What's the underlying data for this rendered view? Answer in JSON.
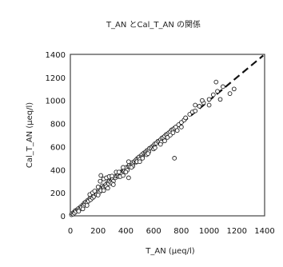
{
  "chart_data": {
    "type": "scatter",
    "title": "T_AN とCal_T_AN の関係",
    "xlabel": "T_AN (μeq/l)",
    "ylabel": "Cal_T_AN (μeq/l)",
    "xlim": [
      0,
      1400
    ],
    "ylim": [
      0,
      1400
    ],
    "xticks": [
      "0",
      "200",
      "400",
      "600",
      "800",
      "1000",
      "1200",
      "1400"
    ],
    "yticks": [
      "0",
      "200",
      "400",
      "600",
      "800",
      "1000",
      "1200",
      "1400"
    ],
    "grid": false,
    "legend": "none",
    "reference_line": {
      "style": "dashed",
      "x": [
        0,
        1390
      ],
      "y": [
        0,
        1390
      ]
    },
    "points": [
      [
        8,
        10
      ],
      [
        12,
        20
      ],
      [
        20,
        15
      ],
      [
        25,
        30
      ],
      [
        30,
        25
      ],
      [
        35,
        45
      ],
      [
        40,
        38
      ],
      [
        50,
        55
      ],
      [
        55,
        48
      ],
      [
        60,
        65
      ],
      [
        70,
        60
      ],
      [
        75,
        80
      ],
      [
        80,
        72
      ],
      [
        90,
        95
      ],
      [
        95,
        85
      ],
      [
        100,
        110
      ],
      [
        105,
        100
      ],
      [
        110,
        120
      ],
      [
        120,
        115
      ],
      [
        125,
        135
      ],
      [
        130,
        128
      ],
      [
        140,
        150
      ],
      [
        145,
        140
      ],
      [
        150,
        165
      ],
      [
        160,
        155
      ],
      [
        165,
        175
      ],
      [
        170,
        168
      ],
      [
        180,
        190
      ],
      [
        185,
        200
      ],
      [
        190,
        185
      ],
      [
        200,
        210
      ],
      [
        205,
        225
      ],
      [
        210,
        205
      ],
      [
        215,
        235
      ],
      [
        220,
        220
      ],
      [
        230,
        260
      ],
      [
        235,
        245
      ],
      [
        240,
        250
      ],
      [
        250,
        260
      ],
      [
        255,
        270
      ],
      [
        260,
        255
      ],
      [
        270,
        290
      ],
      [
        275,
        280
      ],
      [
        280,
        300
      ],
      [
        290,
        295
      ],
      [
        300,
        310
      ],
      [
        305,
        320
      ],
      [
        310,
        300
      ],
      [
        320,
        335
      ],
      [
        325,
        330
      ],
      [
        330,
        345
      ],
      [
        340,
        350
      ],
      [
        345,
        360
      ],
      [
        350,
        340
      ],
      [
        360,
        370
      ],
      [
        365,
        380
      ],
      [
        370,
        360
      ],
      [
        380,
        395
      ],
      [
        385,
        390
      ],
      [
        390,
        400
      ],
      [
        400,
        410
      ],
      [
        405,
        420
      ],
      [
        410,
        395
      ],
      [
        420,
        430
      ],
      [
        425,
        440
      ],
      [
        430,
        425
      ],
      [
        440,
        450
      ],
      [
        445,
        460
      ],
      [
        450,
        445
      ],
      [
        460,
        470
      ],
      [
        470,
        480
      ],
      [
        475,
        465
      ],
      [
        480,
        495
      ],
      [
        490,
        500
      ],
      [
        495,
        510
      ],
      [
        500,
        490
      ],
      [
        510,
        520
      ],
      [
        515,
        530
      ],
      [
        520,
        510
      ],
      [
        530,
        545
      ],
      [
        540,
        550
      ],
      [
        545,
        540
      ],
      [
        550,
        565
      ],
      [
        560,
        570
      ],
      [
        565,
        555
      ],
      [
        570,
        585
      ],
      [
        580,
        590
      ],
      [
        590,
        600
      ],
      [
        600,
        610
      ],
      [
        605,
        595
      ],
      [
        610,
        625
      ],
      [
        620,
        630
      ],
      [
        630,
        645
      ],
      [
        640,
        650
      ],
      [
        650,
        660
      ],
      [
        655,
        640
      ],
      [
        660,
        675
      ],
      [
        670,
        680
      ],
      [
        680,
        690
      ],
      [
        690,
        705
      ],
      [
        700,
        710
      ],
      [
        710,
        720
      ],
      [
        720,
        730
      ],
      [
        730,
        745
      ],
      [
        740,
        750
      ],
      [
        750,
        760
      ],
      [
        760,
        770
      ],
      [
        780,
        790
      ],
      [
        800,
        810
      ],
      [
        820,
        830
      ],
      [
        830,
        850
      ],
      [
        860,
        880
      ],
      [
        880,
        900
      ],
      [
        900,
        910
      ],
      [
        930,
        950
      ],
      [
        960,
        980
      ],
      [
        1000,
        1010
      ],
      [
        1030,
        1050
      ],
      [
        1060,
        1080
      ],
      [
        1100,
        1120
      ],
      [
        140,
        185
      ],
      [
        160,
        200
      ],
      [
        175,
        215
      ],
      [
        200,
        250
      ],
      [
        215,
        300
      ],
      [
        220,
        350
      ],
      [
        240,
        320
      ],
      [
        260,
        330
      ],
      [
        280,
        340
      ],
      [
        300,
        345
      ],
      [
        330,
        380
      ],
      [
        350,
        380
      ],
      [
        380,
        420
      ],
      [
        420,
        470
      ],
      [
        450,
        430
      ],
      [
        480,
        470
      ],
      [
        520,
        500
      ],
      [
        550,
        530
      ],
      [
        600,
        580
      ],
      [
        650,
        620
      ],
      [
        700,
        680
      ],
      [
        720,
        700
      ],
      [
        770,
        740
      ],
      [
        800,
        770
      ],
      [
        750,
        500
      ],
      [
        900,
        960
      ],
      [
        950,
        1000
      ],
      [
        1000,
        960
      ],
      [
        1050,
        1160
      ],
      [
        1080,
        1010
      ],
      [
        1150,
        1060
      ],
      [
        1180,
        1100
      ],
      [
        120,
        90
      ],
      [
        90,
        60
      ],
      [
        60,
        40
      ],
      [
        200,
        180
      ],
      [
        240,
        220
      ],
      [
        300,
        280
      ],
      [
        360,
        340
      ],
      [
        400,
        380
      ],
      [
        440,
        420
      ],
      [
        500,
        470
      ],
      [
        560,
        540
      ],
      [
        610,
        590
      ],
      [
        680,
        650
      ],
      [
        740,
        720
      ],
      [
        420,
        330
      ],
      [
        380,
        350
      ],
      [
        310,
        270
      ],
      [
        270,
        240
      ]
    ]
  }
}
